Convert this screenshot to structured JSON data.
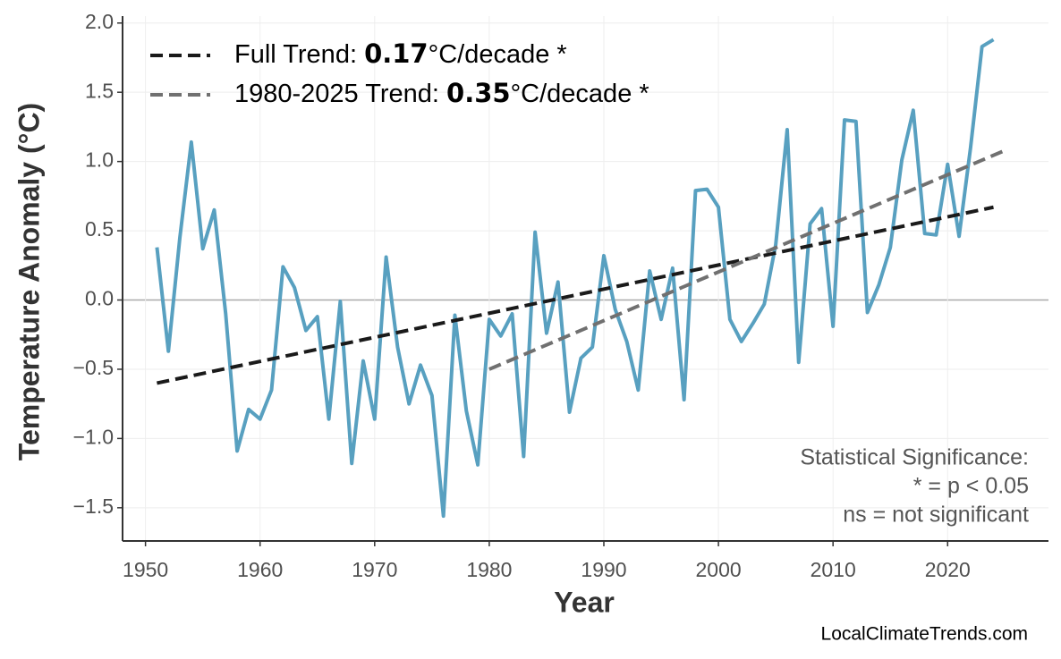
{
  "chart_data": {
    "type": "line",
    "x_label": "Year",
    "y_label": "Temperature Anomaly (°C)",
    "x": [
      1951,
      1952,
      1953,
      1954,
      1955,
      1956,
      1957,
      1958,
      1959,
      1960,
      1961,
      1962,
      1963,
      1964,
      1965,
      1966,
      1967,
      1968,
      1969,
      1970,
      1971,
      1972,
      1973,
      1974,
      1975,
      1976,
      1977,
      1978,
      1979,
      1980,
      1981,
      1982,
      1983,
      1984,
      1985,
      1986,
      1987,
      1988,
      1989,
      1990,
      1991,
      1992,
      1993,
      1994,
      1995,
      1996,
      1997,
      1998,
      1999,
      2000,
      2001,
      2002,
      2003,
      2004,
      2005,
      2006,
      2007,
      2008,
      2009,
      2010,
      2011,
      2012,
      2013,
      2014,
      2015,
      2016,
      2017,
      2018,
      2019,
      2020,
      2021,
      2022,
      2023,
      2024
    ],
    "series": [
      {
        "color": "#58a0c0",
        "values": [
          0.38,
          -0.37,
          0.45,
          1.14,
          0.37,
          0.65,
          -0.1,
          -1.09,
          -0.79,
          -0.86,
          -0.65,
          0.24,
          0.09,
          -0.22,
          -0.12,
          -0.86,
          -0.01,
          -1.18,
          -0.44,
          -0.86,
          0.31,
          -0.34,
          -0.75,
          -0.47,
          -0.69,
          -1.56,
          -0.11,
          -0.8,
          -1.19,
          -0.14,
          -0.26,
          -0.1,
          -1.13,
          0.49,
          -0.24,
          0.13,
          -0.81,
          -0.42,
          -0.34,
          0.32,
          -0.07,
          -0.3,
          -0.65,
          0.21,
          -0.14,
          0.23,
          -0.72,
          0.79,
          0.8,
          0.67,
          -0.14,
          -0.3,
          -0.17,
          -0.03,
          0.4,
          1.23,
          -0.45,
          0.55,
          0.66,
          -0.19,
          1.3,
          1.29,
          -0.09,
          0.11,
          0.38,
          1.01,
          1.37,
          0.48,
          0.47,
          0.98,
          0.46,
          1.1,
          1.83,
          1.88
        ]
      },
      {
        "name_parts": [
          "Full Trend: ",
          "0.17",
          "°C/decade *"
        ],
        "color": "#1a1a1a",
        "dashed": true,
        "x": [
          1951,
          2024
        ],
        "values": [
          -0.6,
          0.67
        ]
      },
      {
        "name_parts": [
          "1980-2025 Trend: ",
          "0.35",
          "°C/decade *"
        ],
        "color": "#707070",
        "dashed": true,
        "x": [
          1980,
          2025
        ],
        "values": [
          -0.5,
          1.08
        ]
      }
    ],
    "xlim": [
      1948,
      2028.8
    ],
    "ylim": [
      -1.74,
      2.05
    ],
    "xticks": [
      1950,
      1960,
      1970,
      1980,
      1990,
      2000,
      2010,
      2020
    ],
    "yticks": [
      {
        "value": -1.5,
        "label": "−1.5"
      },
      {
        "value": -1.0,
        "label": "−1.0"
      },
      {
        "value": -0.5,
        "label": "−0.5"
      },
      {
        "value": 0.0,
        "label": "0.0"
      },
      0.5,
      {
        "value": 1.0,
        "label": "1.0"
      },
      1.5,
      {
        "value": 2.0,
        "label": "2.0"
      }
    ],
    "grid": true,
    "legend": "upper left",
    "annotation": [
      "Statistical Significance:",
      "* = p < 0.05",
      "ns = not significant"
    ],
    "credit": "LocalClimateTrends.com"
  }
}
